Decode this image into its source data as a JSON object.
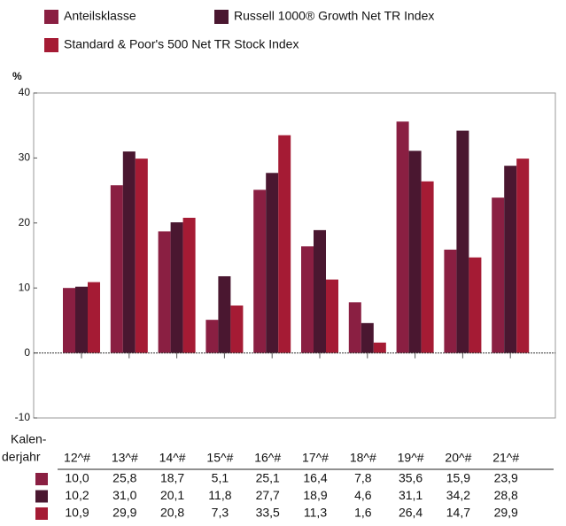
{
  "chart_data": {
    "type": "bar",
    "y_label": "%",
    "categories": [
      "12^#",
      "13^#",
      "14^#",
      "15^#",
      "16^#",
      "17^#",
      "18^#",
      "19^#",
      "20^#",
      "21^#"
    ],
    "series": [
      {
        "name": "Anteilsklasse",
        "color": "#8a1f42",
        "values": [
          10.0,
          25.8,
          18.7,
          5.1,
          25.1,
          16.4,
          7.8,
          35.6,
          15.9,
          23.9
        ],
        "value_labels": [
          "10,0",
          "25,8",
          "18,7",
          "5,1",
          "25,1",
          "16,4",
          "7,8",
          "35,6",
          "15,9",
          "23,9"
        ]
      },
      {
        "name": "Russell 1000® Growth Net TR Index",
        "color": "#4a1730",
        "values": [
          10.2,
          31.0,
          20.1,
          11.8,
          27.7,
          18.9,
          4.6,
          31.1,
          34.2,
          28.8
        ],
        "value_labels": [
          "10,2",
          "31,0",
          "20,1",
          "11,8",
          "27,7",
          "18,9",
          "4,6",
          "31,1",
          "34,2",
          "28,8"
        ]
      },
      {
        "name": "Standard & Poor's 500 Net TR Stock Index",
        "color": "#a51b34",
        "values": [
          10.9,
          29.9,
          20.8,
          7.3,
          33.5,
          11.3,
          1.6,
          26.4,
          14.7,
          29.9
        ],
        "value_labels": [
          "10,9",
          "29,9",
          "20,8",
          "7,3",
          "33,5",
          "11,3",
          "1,6",
          "26,4",
          "14,7",
          "29,9"
        ]
      }
    ],
    "ylim": [
      -10,
      40
    ],
    "yticks": [
      -10,
      0,
      10,
      20,
      30,
      40
    ],
    "table_row_label": [
      "Kalen-",
      "derjahr"
    ]
  }
}
